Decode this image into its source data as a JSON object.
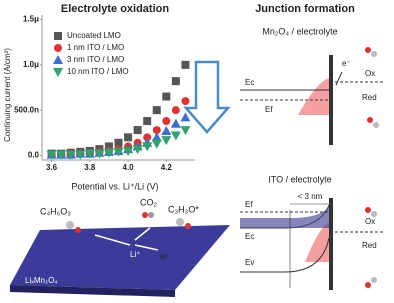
{
  "chart_data": {
    "type": "scatter",
    "title": "Electrolyte oxidation",
    "x_label": "Potential vs. Li⁺/Li (V)",
    "y_label": "Continuing current (A/cm²)",
    "x": [
      3.6,
      3.65,
      3.7,
      3.75,
      3.8,
      3.85,
      3.9,
      3.95,
      4.0,
      4.05,
      4.1,
      4.15,
      4.2,
      4.25,
      4.3
    ],
    "series": [
      {
        "name": "Uncoated LMO",
        "color": "#555555",
        "marker": "square",
        "values": [
          2e-08,
          2e-08,
          3e-08,
          4e-08,
          5e-08,
          7e-08,
          1e-07,
          1.4e-07,
          2e-07,
          2.8e-07,
          3.8e-07,
          5e-07,
          6.5e-07,
          8.2e-07,
          1e-06
        ]
      },
      {
        "name": "1 nm ITO / LMO",
        "color": "#e53030",
        "marker": "circle",
        "values": [
          1e-08,
          1e-08,
          2e-08,
          2e-08,
          3e-08,
          4e-08,
          5e-08,
          7e-08,
          1e-07,
          1.4e-07,
          2e-07,
          2.8e-07,
          3.8e-07,
          5e-07,
          6e-07
        ]
      },
      {
        "name": "3 nm ITO / LMO",
        "color": "#3a6fd0",
        "marker": "triangle",
        "values": [
          1e-08,
          1e-08,
          1e-08,
          2e-08,
          2e-08,
          3e-08,
          4e-08,
          5e-08,
          7e-08,
          1e-07,
          1.4e-07,
          2e-07,
          2.7e-07,
          3.5e-07,
          4.2e-07
        ]
      },
      {
        "name": "10 nm ITO / LMO",
        "color": "#2fa36a",
        "marker": "triangle-down",
        "values": [
          1e-08,
          1e-08,
          1e-08,
          1e-08,
          2e-08,
          2e-08,
          3e-08,
          4e-08,
          5e-08,
          7e-08,
          1e-07,
          1.3e-07,
          1.7e-07,
          2.2e-07,
          2.8e-07
        ]
      }
    ],
    "xlim": [
      3.55,
      4.35
    ],
    "xticks": [
      3.6,
      3.8,
      {
        "value": 4.0,
        "label": "4.0"
      },
      4.2
    ],
    "ylim": [
      -5e-08,
      1.55e-06
    ],
    "yticks": [
      {
        "value": 0,
        "label": "0.0"
      },
      {
        "value": 5e-07,
        "label": "500.0n"
      },
      {
        "value": 1e-06,
        "label": "1.0μ"
      },
      {
        "value": 1.5e-06,
        "label": "1.5μ"
      }
    ]
  },
  "junction": {
    "title": "Junction formation",
    "top": {
      "label": "Mn₂O₄ / electrolyte",
      "ec": "Ec",
      "ef": "Ef",
      "electron": "e⁻",
      "ox": "Ox",
      "red": "Red"
    },
    "bottom": {
      "label": "ITO / electrolyte",
      "ef": "Ef",
      "width": "< 3 nm",
      "ec": "Ec",
      "ev": "Ev",
      "ox": "Ox",
      "red": "Red"
    }
  },
  "surface": {
    "reactant": "C₄H₆O₃",
    "co2": "CO₂",
    "radical": "C₃H₃O*",
    "li": "Li⁺",
    "h": "H⁺",
    "substrate": "LiₓMn₂O₄"
  }
}
